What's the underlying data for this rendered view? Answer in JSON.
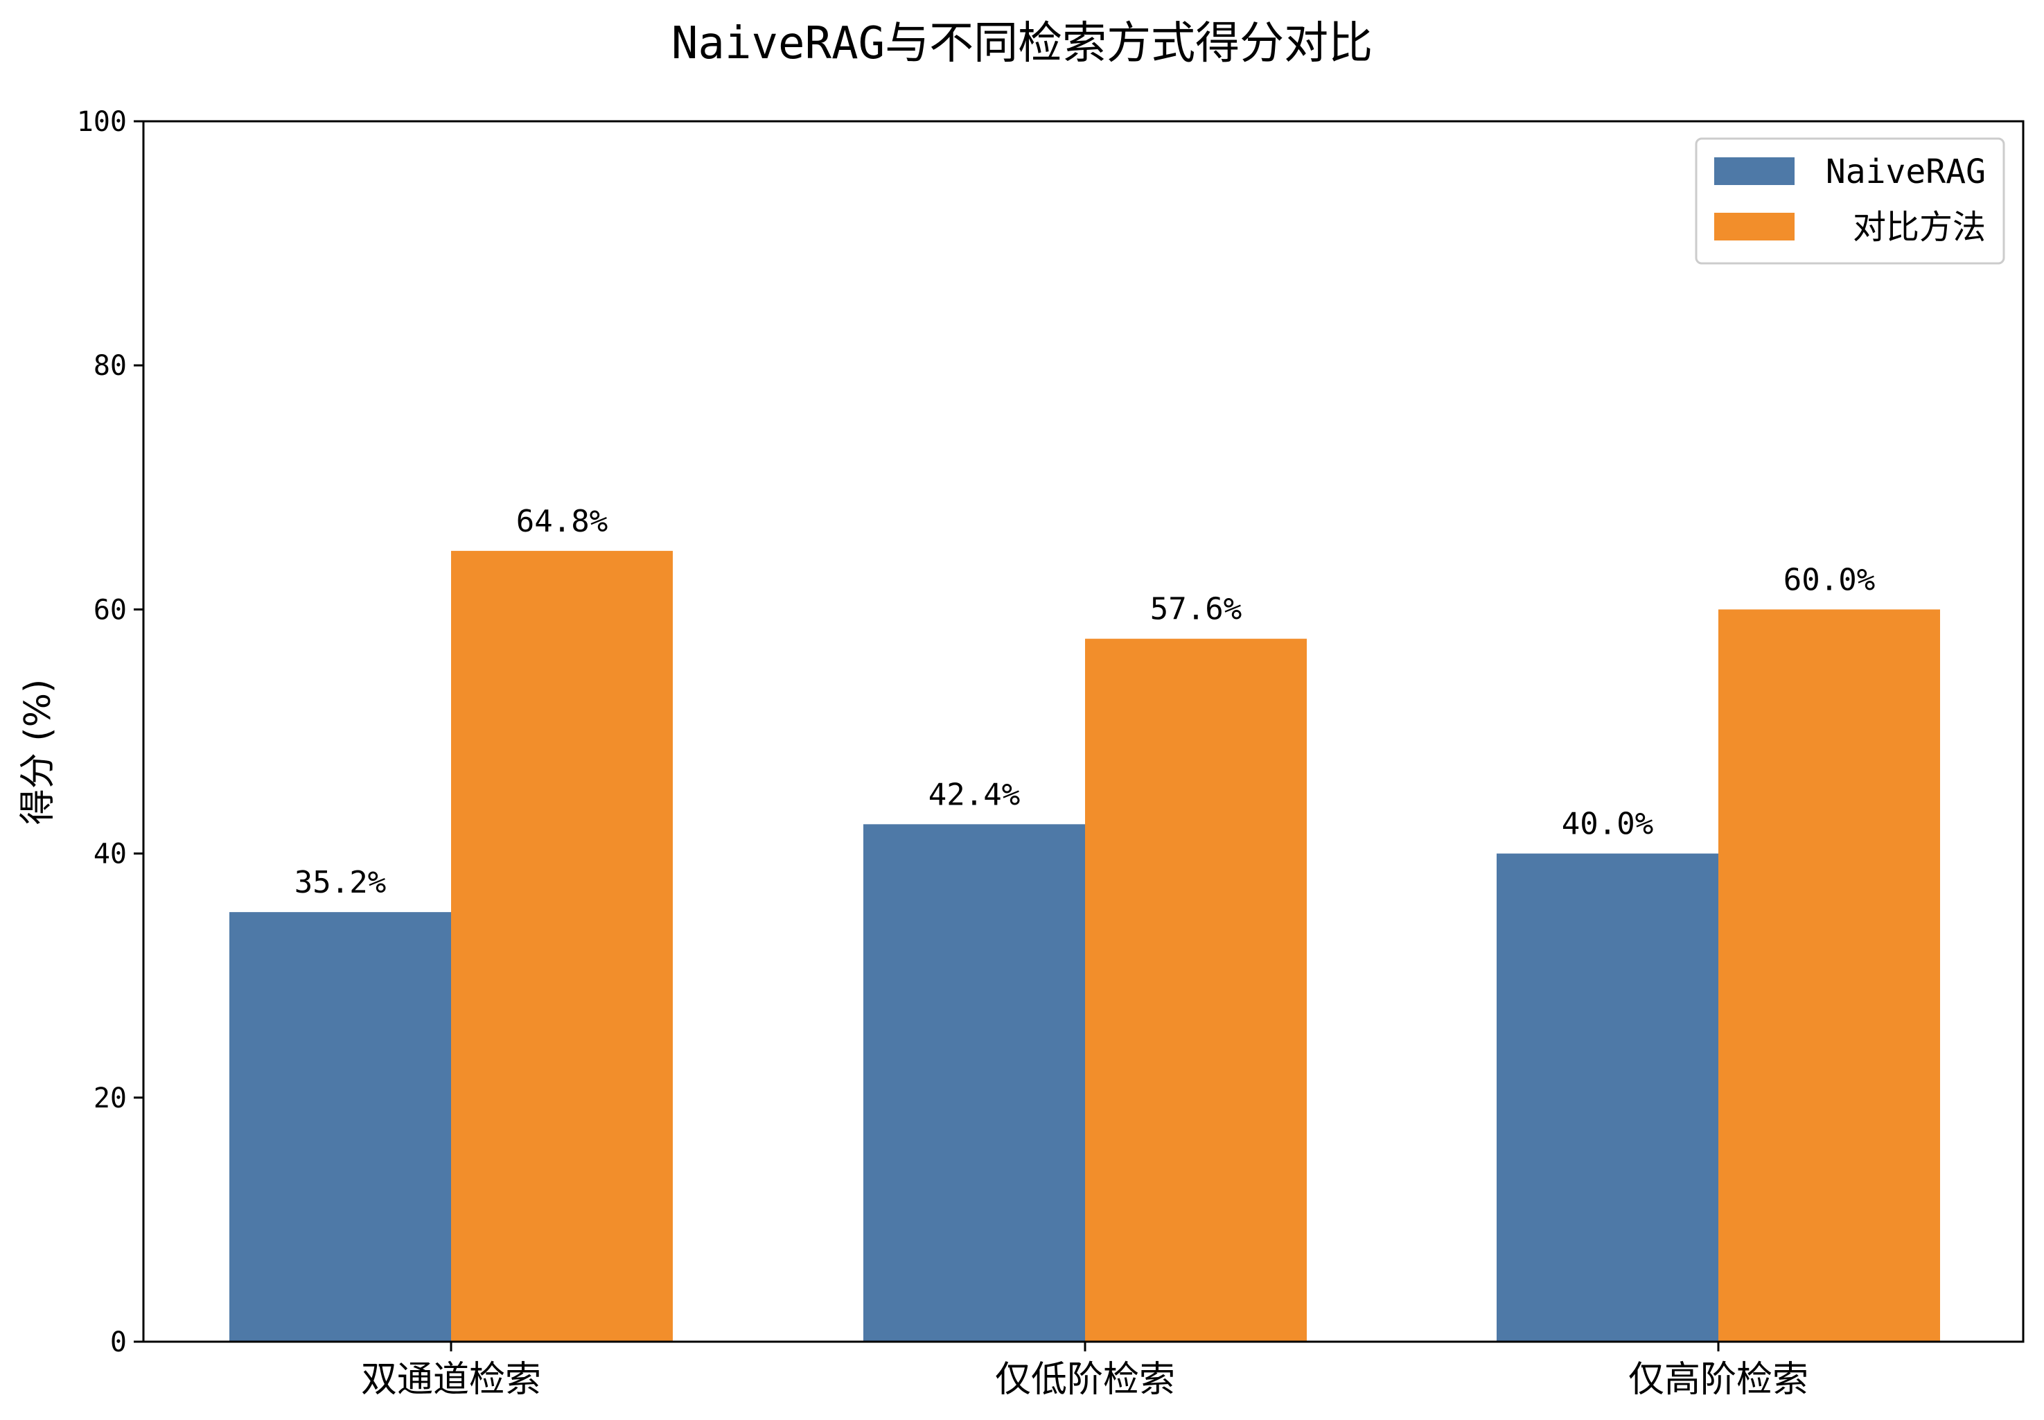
{
  "chart_data": {
    "type": "bar",
    "title": "NaiveRAG与不同检索方式得分对比",
    "ylabel": "得分 (%)",
    "xlabel": "",
    "ylim": [
      0,
      100
    ],
    "yticks": [
      0,
      20,
      40,
      60,
      80,
      100
    ],
    "categories": [
      "双通道检索",
      "仅低阶检索",
      "仅高阶检索"
    ],
    "series": [
      {
        "name": "NaiveRAG",
        "color": "#4e79a7",
        "values": [
          35.2,
          42.4,
          40.0
        ],
        "labels": [
          "35.2%",
          "42.4%",
          "40.0%"
        ]
      },
      {
        "name": "对比方法",
        "color": "#f28e2b",
        "values": [
          64.8,
          57.6,
          60.0
        ],
        "labels": [
          "64.8%",
          "57.6%",
          "60.0%"
        ]
      }
    ],
    "grid": false,
    "legend_position": "top-right"
  }
}
